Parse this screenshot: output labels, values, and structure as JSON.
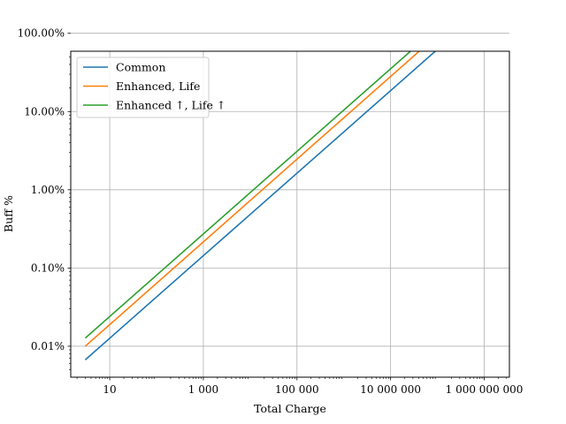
{
  "chart_data": {
    "type": "line",
    "title": "",
    "xlabel": "Total Charge",
    "ylabel": "Buff %",
    "xscale": "log",
    "yscale": "log",
    "xlim": [
      1.47,
      3450000000
    ],
    "ylim": [
      4.02e-05,
      0.59
    ],
    "grid": true,
    "legend_position": "top-left",
    "x_ticks": [
      {
        "value": 10,
        "label": "10"
      },
      {
        "value": 1000,
        "label": "1 000"
      },
      {
        "value": 100000,
        "label": "100 000"
      },
      {
        "value": 10000000,
        "label": "10 000 000"
      },
      {
        "value": 1000000000,
        "label": "1 000 000 000"
      }
    ],
    "y_ticks": [
      {
        "value": 0.0001,
        "label": "0.01%"
      },
      {
        "value": 0.001,
        "label": "0.10%"
      },
      {
        "value": 0.01,
        "label": "1.00%"
      },
      {
        "value": 0.1,
        "label": "10.00%"
      },
      {
        "value": 1.0,
        "label": "100.00%"
      }
    ],
    "series": [
      {
        "name": "Common",
        "color": "#1f77b4",
        "x": [
          3,
          1000000000
        ],
        "y": [
          6.7e-05,
          2.1
        ]
      },
      {
        "name": "Enhanced, Life",
        "color": "#ff7f0e",
        "x": [
          3,
          1000000000
        ],
        "y": [
          0.0001,
          3.2
        ]
      },
      {
        "name": "Enhanced ↑, Life ↑",
        "color": "#2ca02c",
        "x": [
          3,
          1000000000
        ],
        "y": [
          0.000127,
          4.0
        ]
      }
    ]
  }
}
